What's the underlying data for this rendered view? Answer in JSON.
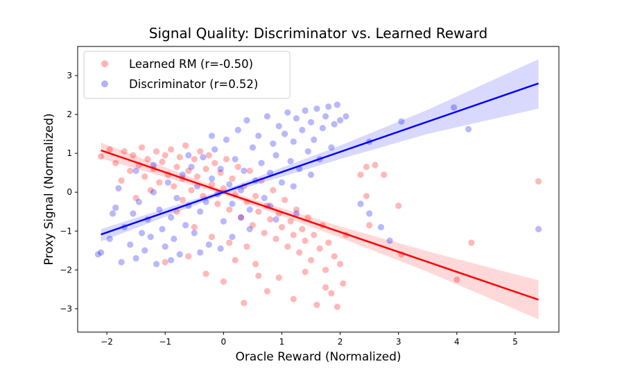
{
  "chart_data": {
    "type": "scatter",
    "title": "Signal Quality: Discriminator vs. Learned Reward",
    "xlabel": "Oracle Reward (Normalized)",
    "ylabel": "Proxy Signal (Normalized)",
    "xlim": [
      -2.5,
      5.75
    ],
    "ylim": [
      -3.6,
      3.75
    ],
    "xticks": [
      -2,
      -1,
      0,
      1,
      2,
      3,
      4,
      5
    ],
    "yticks": [
      -3,
      -2,
      -1,
      0,
      1,
      2,
      3
    ],
    "legend_position": "top-left",
    "series": [
      {
        "name": "Learned RM (r=-0.50)",
        "color": "#ff0000",
        "slope": -0.5125,
        "intercept": 0.0,
        "band": [
          {
            "x": -2.1,
            "lo": 0.87,
            "hi": 1.28
          },
          {
            "x": 0.0,
            "lo": -0.06,
            "hi": 0.06
          },
          {
            "x": 2.0,
            "lo": -1.17,
            "hi": -0.88
          },
          {
            "x": 3.5,
            "lo": -2.05,
            "hi": -1.52
          },
          {
            "x": 5.4,
            "lo": -3.27,
            "hi": -2.27
          }
        ],
        "points": [
          [
            -2.1,
            0.92
          ],
          [
            -1.95,
            1.1
          ],
          [
            -1.85,
            0.75
          ],
          [
            -1.7,
            1.05
          ],
          [
            -1.6,
            0.55
          ],
          [
            -1.55,
            0.95
          ],
          [
            -1.45,
            0.7
          ],
          [
            -1.4,
            1.15
          ],
          [
            -1.35,
            0.4
          ],
          [
            -1.3,
            0.85
          ],
          [
            -1.2,
            0.6
          ],
          [
            -1.15,
            1.05
          ],
          [
            -1.1,
            0.25
          ],
          [
            -1.05,
            0.78
          ],
          [
            -1.0,
            0.95
          ],
          [
            -0.95,
            0.45
          ],
          [
            -0.9,
            1.1
          ],
          [
            -0.85,
            0.15
          ],
          [
            -0.8,
            0.65
          ],
          [
            -0.75,
            0.9
          ],
          [
            -0.7,
            0.35
          ],
          [
            -0.65,
            1.2
          ],
          [
            -0.6,
            0.55
          ],
          [
            -0.55,
            0.05
          ],
          [
            -0.5,
            0.85
          ],
          [
            -0.45,
            0.4
          ],
          [
            -0.4,
            1.05
          ],
          [
            -0.35,
            -0.1
          ],
          [
            -0.3,
            0.6
          ],
          [
            -0.25,
            0.95
          ],
          [
            -0.2,
            0.2
          ],
          [
            -0.15,
            0.75
          ],
          [
            -0.1,
            -0.3
          ],
          [
            -0.05,
            0.5
          ],
          [
            0.0,
            0.1
          ],
          [
            0.05,
            0.85
          ],
          [
            0.1,
            -0.45
          ],
          [
            0.15,
            0.35
          ],
          [
            0.2,
            -0.05
          ],
          [
            0.25,
            0.65
          ],
          [
            0.3,
            -0.65
          ],
          [
            0.35,
            0.15
          ],
          [
            0.4,
            -0.25
          ],
          [
            0.45,
            0.55
          ],
          [
            0.5,
            -0.85
          ],
          [
            0.55,
            -0.1
          ],
          [
            0.6,
            -0.5
          ],
          [
            0.65,
            0.3
          ],
          [
            0.7,
            -1.05
          ],
          [
            0.75,
            -0.35
          ],
          [
            0.8,
            -0.7
          ],
          [
            0.85,
            0.05
          ],
          [
            0.9,
            -1.2
          ],
          [
            0.95,
            -0.55
          ],
          [
            1.0,
            -0.9
          ],
          [
            1.05,
            -0.2
          ],
          [
            1.1,
            -1.4
          ],
          [
            1.15,
            -0.75
          ],
          [
            1.2,
            -1.1
          ],
          [
            1.25,
            -0.45
          ],
          [
            1.3,
            -1.55
          ],
          [
            1.35,
            -0.95
          ],
          [
            1.4,
            -1.25
          ],
          [
            1.45,
            -0.65
          ],
          [
            1.5,
            -1.75
          ],
          [
            1.55,
            -1.1
          ],
          [
            1.6,
            -2.9
          ],
          [
            1.65,
            -1.45
          ],
          [
            1.7,
            -0.85
          ],
          [
            1.75,
            -2.0
          ],
          [
            1.8,
            -1.3
          ],
          [
            1.85,
            -2.6
          ],
          [
            1.9,
            -1.65
          ],
          [
            1.95,
            -2.95
          ],
          [
            2.0,
            -1.85
          ],
          [
            2.05,
            -2.35
          ],
          [
            2.1,
            -1.1
          ],
          [
            -1.0,
            -1.8
          ],
          [
            -0.6,
            -1.65
          ],
          [
            -0.3,
            -2.1
          ],
          [
            0.0,
            -2.3
          ],
          [
            0.2,
            -1.75
          ],
          [
            0.35,
            -2.85
          ],
          [
            0.6,
            -2.15
          ],
          [
            0.75,
            -2.55
          ],
          [
            0.95,
            -2.2
          ],
          [
            1.2,
            -2.75
          ],
          [
            1.4,
            -2.05
          ],
          [
            1.75,
            -2.45
          ],
          [
            -1.5,
            -0.15
          ],
          [
            -0.8,
            -0.5
          ],
          [
            -0.5,
            -0.9
          ],
          [
            -0.2,
            -1.15
          ],
          [
            0.1,
            -1.3
          ],
          [
            0.4,
            -1.4
          ],
          [
            2.35,
            0.45
          ],
          [
            2.45,
            0.65
          ],
          [
            2.6,
            0.7
          ],
          [
            2.45,
            -0.1
          ],
          [
            2.5,
            -0.85
          ],
          [
            2.75,
            0.45
          ],
          [
            3.0,
            -0.35
          ],
          [
            3.05,
            -1.6
          ],
          [
            4.0,
            -2.25
          ],
          [
            4.25,
            -1.3
          ],
          [
            5.4,
            0.28
          ],
          [
            -1.75,
            0.3
          ],
          [
            -1.25,
            0.05
          ],
          [
            -0.7,
            -0.2
          ],
          [
            0.55,
            -1.85
          ]
        ]
      },
      {
        "name": "Discriminator (r=0.52)",
        "color": "#0000ff",
        "slope": 0.5185,
        "intercept": 0.0,
        "band": [
          {
            "x": -2.1,
            "lo": -1.27,
            "hi": -0.95
          },
          {
            "x": 0.0,
            "lo": -0.06,
            "hi": 0.06
          },
          {
            "x": 2.0,
            "lo": 0.85,
            "hi": 1.2
          },
          {
            "x": 3.5,
            "lo": 1.5,
            "hi": 2.12
          },
          {
            "x": 5.4,
            "lo": 2.15,
            "hi": 3.42
          }
        ],
        "points": [
          [
            -2.1,
            -1.55
          ],
          [
            -1.95,
            -1.2
          ],
          [
            -1.85,
            -0.4
          ],
          [
            -1.75,
            -1.8
          ],
          [
            -1.7,
            -0.9
          ],
          [
            -1.6,
            -1.35
          ],
          [
            -1.55,
            -0.55
          ],
          [
            -1.5,
            -1.7
          ],
          [
            -1.45,
            -0.25
          ],
          [
            -1.4,
            -1.05
          ],
          [
            -1.35,
            -1.5
          ],
          [
            -1.3,
            -0.7
          ],
          [
            -1.25,
            -1.15
          ],
          [
            -1.2,
            0.0
          ],
          [
            -1.15,
            -1.85
          ],
          [
            -1.1,
            -0.45
          ],
          [
            -1.05,
            -0.95
          ],
          [
            -1.0,
            -1.4
          ],
          [
            -0.95,
            0.25
          ],
          [
            -0.9,
            -0.65
          ],
          [
            -0.85,
            -1.2
          ],
          [
            -0.8,
            -0.15
          ],
          [
            -0.75,
            -1.6
          ],
          [
            -0.7,
            0.45
          ],
          [
            -0.65,
            -0.85
          ],
          [
            -0.6,
            -0.35
          ],
          [
            -0.55,
            0.65
          ],
          [
            -0.5,
            -1.05
          ],
          [
            -0.45,
            0.15
          ],
          [
            -0.4,
            -0.5
          ],
          [
            -0.35,
            0.9
          ],
          [
            -0.3,
            -0.25
          ],
          [
            -0.25,
            -1.35
          ],
          [
            -0.2,
            0.35
          ],
          [
            -0.15,
            1.1
          ],
          [
            -0.1,
            -0.05
          ],
          [
            -0.05,
            0.6
          ],
          [
            0.0,
            -0.75
          ],
          [
            0.05,
            1.35
          ],
          [
            0.1,
            0.2
          ],
          [
            0.15,
            -0.3
          ],
          [
            0.2,
            0.85
          ],
          [
            0.25,
            1.6
          ],
          [
            0.3,
            0.05
          ],
          [
            0.35,
            0.55
          ],
          [
            0.4,
            1.85
          ],
          [
            0.45,
            -0.45
          ],
          [
            0.5,
            1.15
          ],
          [
            0.55,
            0.3
          ],
          [
            0.6,
            1.45
          ],
          [
            0.65,
            0.75
          ],
          [
            0.7,
            -0.15
          ],
          [
            0.75,
            1.95
          ],
          [
            0.8,
            0.5
          ],
          [
            0.85,
            1.25
          ],
          [
            0.9,
            0.95
          ],
          [
            0.95,
            1.7
          ],
          [
            1.0,
            0.25
          ],
          [
            1.05,
            1.5
          ],
          [
            1.1,
            2.05
          ],
          [
            1.15,
            0.8
          ],
          [
            1.2,
            1.3
          ],
          [
            1.25,
            1.9
          ],
          [
            1.3,
            0.6
          ],
          [
            1.35,
            1.6
          ],
          [
            1.4,
            2.1
          ],
          [
            1.45,
            1.05
          ],
          [
            1.5,
            1.8
          ],
          [
            1.55,
            1.35
          ],
          [
            1.6,
            2.15
          ],
          [
            1.65,
            0.85
          ],
          [
            1.7,
            1.65
          ],
          [
            1.75,
            1.95
          ],
          [
            1.8,
            2.2
          ],
          [
            1.85,
            1.15
          ],
          [
            1.9,
            1.75
          ],
          [
            1.95,
            2.25
          ],
          [
            2.0,
            1.85
          ],
          [
            2.1,
            1.95
          ],
          [
            0.15,
            -1.15
          ],
          [
            -0.4,
            -1.55
          ],
          [
            -0.9,
            -1.75
          ],
          [
            -1.5,
            0.55
          ],
          [
            -1.2,
            0.7
          ],
          [
            -0.6,
            0.95
          ],
          [
            -1.8,
            0.1
          ],
          [
            -0.2,
            1.45
          ],
          [
            0.3,
            -0.65
          ],
          [
            0.8,
            -0.35
          ],
          [
            1.2,
            0.15
          ],
          [
            1.5,
            0.45
          ],
          [
            -2.15,
            -1.6
          ],
          [
            -1.9,
            -0.55
          ],
          [
            2.35,
            -0.3
          ],
          [
            2.5,
            -0.55
          ],
          [
            2.5,
            1.3
          ],
          [
            2.7,
            -0.9
          ],
          [
            2.85,
            -1.25
          ],
          [
            3.05,
            1.82
          ],
          [
            3.95,
            2.18
          ],
          [
            4.2,
            1.62
          ],
          [
            5.4,
            -0.95
          ],
          [
            -0.05,
            -1.45
          ],
          [
            0.45,
            -0.95
          ],
          [
            0.9,
            -0.7
          ],
          [
            1.25,
            -0.55
          ]
        ]
      }
    ]
  }
}
